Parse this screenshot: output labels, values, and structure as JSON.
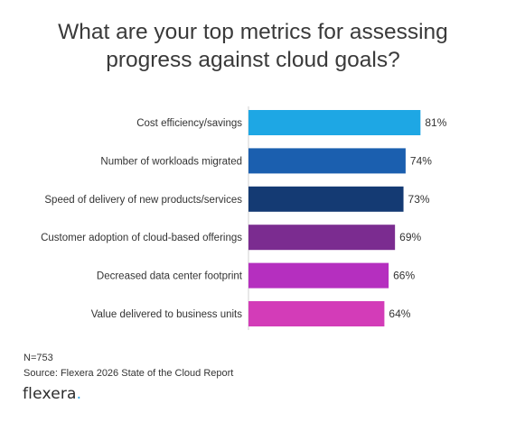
{
  "chart_data": {
    "type": "bar",
    "orientation": "horizontal",
    "title_lines": [
      "What are your top metrics for assessing",
      "progress against cloud goals?"
    ],
    "categories": [
      "Cost efficiency/savings",
      "Number of workloads migrated",
      "Speed of delivery of new products/services",
      "Customer adoption of cloud-based offerings",
      "Decreased data center footprint",
      "Value delivered to business units"
    ],
    "values": [
      81,
      74,
      73,
      69,
      66,
      64
    ],
    "value_labels": [
      "81%",
      "74%",
      "73%",
      "69%",
      "66%",
      "64%"
    ],
    "colors": [
      "#1ea7e4",
      "#1b5faf",
      "#143a73",
      "#7b2c90",
      "#b52fbf",
      "#d33cb8"
    ],
    "unit": "%",
    "grid": false,
    "legend": "none"
  },
  "footer": {
    "sample": "N=753",
    "source": "Source: Flexera 2026 State of the Cloud Report"
  },
  "logo": {
    "text": "flexera",
    "dot": "."
  }
}
